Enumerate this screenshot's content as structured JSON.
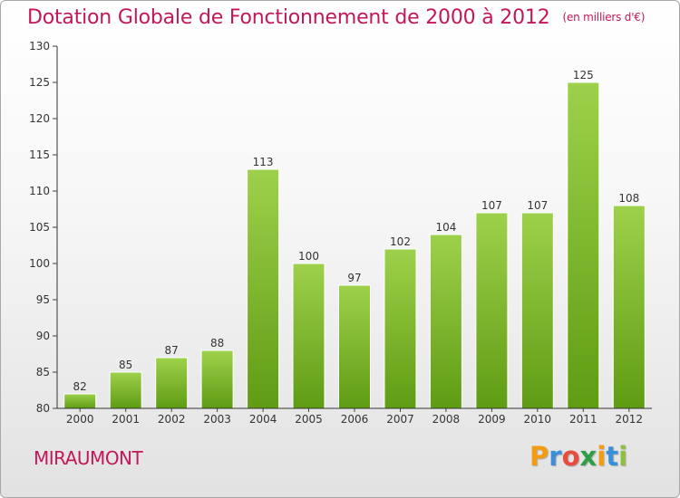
{
  "header": {
    "title": "Dotation Globale de Fonctionnement de 2000 à 2012",
    "unit": "(en milliers d'€)"
  },
  "footer": {
    "place": "MIRAUMONT",
    "logo_letters": [
      "P",
      "r",
      "o",
      "x",
      "i",
      "t",
      "i"
    ],
    "logo_colors": [
      "#f39c12",
      "#3a8fd9",
      "#e74c3c",
      "#2e9e48",
      "#f39c12",
      "#3a8fd9",
      "#8cbf3f"
    ]
  },
  "colors": {
    "title": "#c2185b",
    "bar_light": "#9ed14b",
    "bar_dark": "#5f9c13",
    "axis": "#333333",
    "grid_tick": "#444444"
  },
  "chart_data": {
    "type": "bar",
    "categories": [
      "2000",
      "2001",
      "2002",
      "2003",
      "2004",
      "2005",
      "2006",
      "2007",
      "2008",
      "2009",
      "2010",
      "2011",
      "2012"
    ],
    "values": [
      82,
      85,
      87,
      88,
      113,
      100,
      97,
      102,
      104,
      107,
      107,
      125,
      108
    ],
    "data_labels": [
      "82",
      "85",
      "87",
      "88",
      "113",
      "100",
      "97",
      "102",
      "104",
      "107",
      "107",
      "125",
      "108"
    ],
    "y_ticks": [
      80,
      85,
      90,
      95,
      100,
      105,
      110,
      115,
      120,
      125,
      130
    ],
    "ylim": [
      80,
      130
    ],
    "grid": false,
    "legend": "none"
  }
}
